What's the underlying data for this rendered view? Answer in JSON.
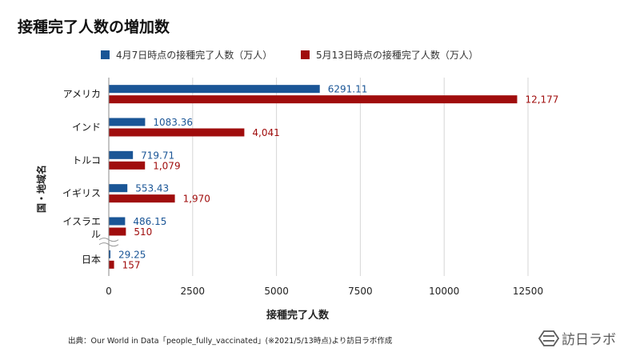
{
  "title": "接種完了人数の増加数",
  "legend": [
    {
      "label": "4月7日時点の接種完了人数（万人）",
      "color": "#1a5596"
    },
    {
      "label": "5月13日時点の接種完了人数（万人）",
      "color": "#a00d0d"
    }
  ],
  "chart_data": {
    "type": "bar",
    "orientation": "horizontal",
    "categories": [
      "アメリカ",
      "インド",
      "トルコ",
      "イギリス",
      "イスラエル",
      "日本"
    ],
    "series": [
      {
        "name": "4月7日時点の接種完了人数（万人）",
        "color": "#1a5596",
        "values": [
          6291.11,
          1083.36,
          719.71,
          553.43,
          486.15,
          29.25
        ],
        "labels": [
          "6291.11",
          "1083.36",
          "719.71",
          "553.43",
          "486.15",
          "29.25"
        ]
      },
      {
        "name": "5月13日時点の接種完了人数（万人）",
        "color": "#a00d0d",
        "values": [
          12177,
          4041,
          1079,
          1970,
          510,
          157
        ],
        "labels": [
          "12,177",
          "4,041",
          "1,079",
          "1,970",
          "510",
          "157"
        ]
      }
    ],
    "xlabel": "接種完了人数",
    "ylabel": "国・地域名",
    "xlim": [
      0,
      12500
    ],
    "xticks": [
      0,
      2500,
      5000,
      7500,
      10000,
      12500
    ],
    "xtick_labels": [
      "0",
      "2500",
      "5000",
      "7500",
      "10000",
      "12500"
    ],
    "grid": "vertical",
    "legend_position": "top"
  },
  "source": "出典：Our World in Data「people_fully_vaccinated」(※2021/5/13時点)より訪日ラボ作成",
  "brand": {
    "name": "訪日ラボ",
    "color": "#5a5a5a"
  }
}
